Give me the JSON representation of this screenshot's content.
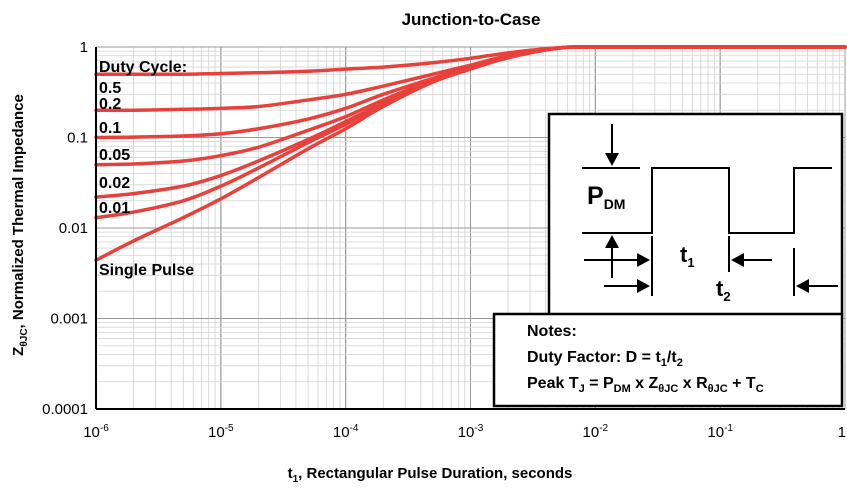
{
  "chart_data": {
    "type": "line",
    "title": "Junction-to-Case",
    "xlabel": {
      "pre": "t",
      "sub": "1",
      "post": ", Rectangular Pulse Duration, seconds"
    },
    "ylabel": {
      "pre": "Z",
      "sub": "θJC",
      "post": ", Normalized Thermal Impedance"
    },
    "x_scale": "log",
    "y_scale": "log",
    "xlim": [
      1e-06,
      1
    ],
    "ylim": [
      0.0001,
      1
    ],
    "grid": true,
    "x_ticks": [
      {
        "base": "10",
        "exp": "-6"
      },
      {
        "base": "10",
        "exp": "-5"
      },
      {
        "base": "10",
        "exp": "-4"
      },
      {
        "base": "10",
        "exp": "-3"
      },
      {
        "base": "10",
        "exp": "-2"
      },
      {
        "base": "10",
        "exp": "-1"
      },
      {
        "base": "1",
        "exp": ""
      }
    ],
    "y_ticks": [
      "1",
      "0.1",
      "0.01",
      "0.001",
      "0.0001"
    ],
    "legend_title": "Duty Cycle:",
    "series_color": "#e8403a",
    "x": [
      1e-06,
      2e-06,
      5e-06,
      1e-05,
      2e-05,
      5e-05,
      0.0001,
      0.0002,
      0.0005,
      0.001,
      0.002,
      0.005,
      0.01,
      0.1,
      1
    ],
    "series": [
      {
        "name": "0.5",
        "values": [
          0.5,
          0.5,
          0.5,
          0.51,
          0.52,
          0.54,
          0.57,
          0.6,
          0.67,
          0.75,
          0.86,
          0.98,
          1.0,
          1.0,
          1.0
        ]
      },
      {
        "name": "0.2",
        "values": [
          0.2,
          0.2,
          0.205,
          0.21,
          0.22,
          0.26,
          0.3,
          0.37,
          0.5,
          0.63,
          0.8,
          0.97,
          1.0,
          1.0,
          1.0
        ]
      },
      {
        "name": "0.1",
        "values": [
          0.1,
          0.101,
          0.104,
          0.11,
          0.125,
          0.16,
          0.21,
          0.3,
          0.45,
          0.6,
          0.78,
          0.97,
          1.0,
          1.0,
          1.0
        ]
      },
      {
        "name": "0.05",
        "values": [
          0.05,
          0.051,
          0.055,
          0.063,
          0.078,
          0.12,
          0.17,
          0.26,
          0.43,
          0.59,
          0.77,
          0.97,
          1.0,
          1.0,
          1.0
        ]
      },
      {
        "name": "0.02",
        "values": [
          0.022,
          0.024,
          0.029,
          0.038,
          0.055,
          0.095,
          0.15,
          0.24,
          0.42,
          0.58,
          0.77,
          0.97,
          1.0,
          1.0,
          1.0
        ]
      },
      {
        "name": "0.01",
        "values": [
          0.013,
          0.015,
          0.02,
          0.029,
          0.046,
          0.088,
          0.14,
          0.235,
          0.415,
          0.575,
          0.765,
          0.97,
          1.0,
          1.0,
          1.0
        ]
      },
      {
        "name": "Single Pulse",
        "values": [
          0.0044,
          0.0072,
          0.013,
          0.021,
          0.036,
          0.075,
          0.125,
          0.22,
          0.41,
          0.57,
          0.76,
          0.97,
          1.0,
          1.0,
          1.0
        ]
      }
    ]
  },
  "inset": {
    "pulse_label": {
      "pre": "P",
      "sub": "DM"
    },
    "t1_label": {
      "pre": "t",
      "sub": "1"
    },
    "t2_label": {
      "pre": "t",
      "sub": "2"
    }
  },
  "notes": {
    "heading": "Notes:",
    "line1": {
      "pre": "Duty Factor: D = t",
      "s1": "1",
      "mid": "/t",
      "s2": "2"
    },
    "line2": {
      "a": "Peak T",
      "a_sub": "J",
      "b": " = P",
      "b_sub": "DM",
      "c": " x Z",
      "c_sub": "θJC",
      "d": " x R",
      "d_sub": "θJC",
      "e": " + T",
      "e_sub": "C"
    }
  }
}
